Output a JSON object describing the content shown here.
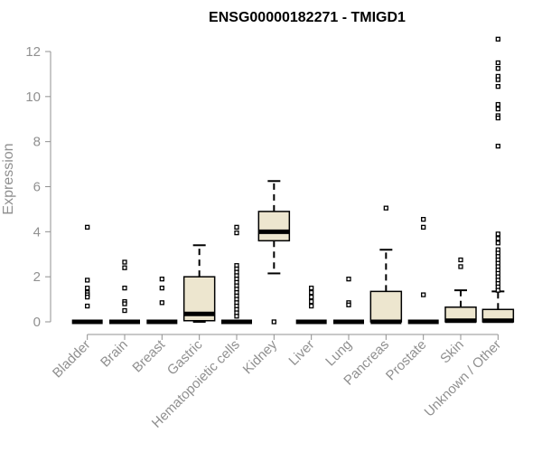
{
  "chart_data": {
    "type": "box",
    "title": "ENSG00000182271 - TMIGD1",
    "xlabel": "",
    "ylabel": "Expression",
    "ylim": [
      0,
      12.5
    ],
    "yticks": [
      0,
      2,
      4,
      6,
      8,
      10,
      12
    ],
    "grid": false,
    "box_fill": "#ede6cf",
    "categories": [
      "Bladder",
      "Brain",
      "Breast",
      "Gastric",
      "Hematopoietic cells",
      "Kidney",
      "Liver",
      "Lung",
      "Pancreas",
      "Prostate",
      "Skin",
      "Unknown / Other"
    ],
    "boxes": [
      {
        "category": "Bladder",
        "q1": 0,
        "median": 0,
        "q3": 0,
        "whisker_low": 0,
        "whisker_high": 0,
        "outliers": [
          4.2,
          1.85,
          1.5,
          1.3,
          1.2,
          1.1,
          0.7
        ]
      },
      {
        "category": "Brain",
        "q1": 0,
        "median": 0,
        "q3": 0,
        "whisker_low": 0,
        "whisker_high": 0,
        "outliers": [
          2.65,
          2.4,
          1.5,
          0.9,
          0.8,
          0.5
        ]
      },
      {
        "category": "Breast",
        "q1": 0,
        "median": 0,
        "q3": 0,
        "whisker_low": 0,
        "whisker_high": 0,
        "outliers": [
          1.9,
          1.5,
          0.85
        ]
      },
      {
        "category": "Gastric",
        "q1": 0.05,
        "median": 0.35,
        "q3": 2.0,
        "whisker_low": 0,
        "whisker_high": 3.4,
        "outliers": []
      },
      {
        "category": "Hematopoietic cells",
        "q1": 0,
        "median": 0,
        "q3": 0,
        "whisker_low": 0,
        "whisker_high": 0,
        "outliers": [
          4.2,
          3.95,
          2.5,
          2.35,
          2.2,
          2.05,
          1.9,
          1.75,
          1.6,
          1.45,
          1.3,
          1.15,
          1.0,
          0.85,
          0.7,
          0.55,
          0.4,
          0.25
        ]
      },
      {
        "category": "Kidney",
        "q1": 3.6,
        "median": 4.0,
        "q3": 4.9,
        "whisker_low": 2.15,
        "whisker_high": 6.25,
        "outliers": [
          0
        ]
      },
      {
        "category": "Liver",
        "q1": 0,
        "median": 0,
        "q3": 0,
        "whisker_low": 0,
        "whisker_high": 0,
        "outliers": [
          1.5,
          1.3,
          1.1,
          0.9,
          0.7
        ]
      },
      {
        "category": "Lung",
        "q1": 0,
        "median": 0,
        "q3": 0,
        "whisker_low": 0,
        "whisker_high": 0,
        "outliers": [
          1.9,
          0.85,
          0.75
        ]
      },
      {
        "category": "Pancreas",
        "q1": 0,
        "median": 0,
        "q3": 1.35,
        "whisker_low": 0,
        "whisker_high": 3.2,
        "outliers": [
          5.05
        ]
      },
      {
        "category": "Prostate",
        "q1": 0,
        "median": 0,
        "q3": 0,
        "whisker_low": 0,
        "whisker_high": 0,
        "outliers": [
          4.55,
          4.2,
          1.2
        ]
      },
      {
        "category": "Skin",
        "q1": 0,
        "median": 0.05,
        "q3": 0.65,
        "whisker_low": 0,
        "whisker_high": 1.4,
        "outliers": [
          2.75,
          2.45
        ]
      },
      {
        "category": "Unknown / Other",
        "q1": 0,
        "median": 0.05,
        "q3": 0.55,
        "whisker_low": 0,
        "whisker_high": 1.35,
        "outliers": [
          12.55,
          11.5,
          11.25,
          10.9,
          10.75,
          10.45,
          9.65,
          9.45,
          9.15,
          9.05,
          7.8,
          3.9,
          3.7,
          3.5,
          3.2,
          3.05,
          2.9,
          2.75,
          2.6,
          2.45,
          2.3,
          2.15,
          2.0,
          1.85,
          1.7,
          1.55,
          1.4
        ]
      }
    ]
  }
}
